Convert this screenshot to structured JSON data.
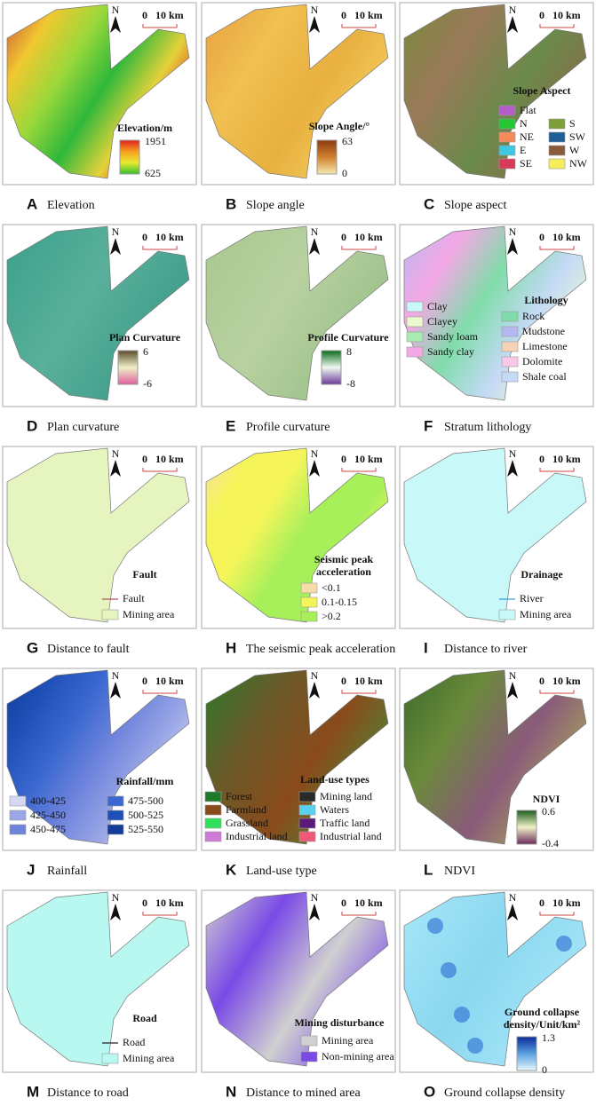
{
  "panels": [
    {
      "letter": "A",
      "caption": "Elevation",
      "north": "N",
      "scale": [
        "0",
        "10 km"
      ],
      "legend": {
        "title": [
          "Elevation/m"
        ],
        "ramp": [
          "1951",
          "625"
        ]
      }
    },
    {
      "letter": "B",
      "caption": "Slope angle",
      "north": "N",
      "scale": [
        "0",
        "10 km"
      ],
      "legend": {
        "title": [
          "Slope Angle/°"
        ],
        "ramp": [
          "63",
          "0"
        ]
      }
    },
    {
      "letter": "C",
      "caption": "Slope aspect",
      "north": "N",
      "scale": [
        "0",
        "10 km"
      ],
      "legend": {
        "title": [
          "Slope Aspect"
        ],
        "items": [
          {
            "label": "Flat",
            "color": "#b45cc8"
          },
          {
            "label": "N",
            "color": "#22c833"
          },
          {
            "label": "NE",
            "color": "#f58a5a"
          },
          {
            "label": "E",
            "color": "#3cc8e0"
          },
          {
            "label": "SE",
            "color": "#d83a5a"
          },
          {
            "label": "S",
            "color": "#7ea03a"
          },
          {
            "label": "SW",
            "color": "#1f5f96"
          },
          {
            "label": "W",
            "color": "#8a5a3c"
          },
          {
            "label": "NW",
            "color": "#f5ee5a"
          }
        ]
      }
    },
    {
      "letter": "D",
      "caption": "Plan curvature",
      "north": "N",
      "scale": [
        "0",
        "10 km"
      ],
      "legend": {
        "title": [
          "Plan Curvature"
        ],
        "ramp": [
          "6",
          "-6"
        ]
      }
    },
    {
      "letter": "E",
      "caption": "Profile curvature",
      "north": "N",
      "scale": [
        "0",
        "10 km"
      ],
      "legend": {
        "title": [
          "Profile Curvature"
        ],
        "ramp": [
          "8",
          "-8"
        ]
      }
    },
    {
      "letter": "F",
      "caption": "Stratum lithology",
      "north": "N",
      "scale": [
        "0",
        "10 km"
      ],
      "legend": {
        "title": [
          "Lithology"
        ],
        "items": [
          {
            "label": "Clay",
            "color": "#c8f8f8"
          },
          {
            "label": "Clayey",
            "color": "#eef8d0"
          },
          {
            "label": "Sandy loam",
            "color": "#a8eab0"
          },
          {
            "label": "Sandy clay",
            "color": "#f5a8e6"
          },
          {
            "label": "Rock",
            "color": "#80dcaa"
          },
          {
            "label": "Mudstone",
            "color": "#b4b8f0"
          },
          {
            "label": "Limestone",
            "color": "#f8d2b4"
          },
          {
            "label": "Dolomite",
            "color": "#f8c8e6"
          },
          {
            "label": "Shale coal",
            "color": "#c4daf5"
          }
        ]
      }
    },
    {
      "letter": "G",
      "caption": "Distance to fault",
      "north": "N",
      "scale": [
        "0",
        "10 km"
      ],
      "legend": {
        "title": [
          "Fault"
        ],
        "items": [
          {
            "label": "Fault",
            "color": "#b05060",
            "swatch": "line"
          },
          {
            "label": "Mining area",
            "color": "#e6f5c0"
          }
        ]
      }
    },
    {
      "letter": "H",
      "caption": "The seismic peak acceleration",
      "north": "N",
      "scale": [
        "0",
        "10 km"
      ],
      "legend": {
        "title": [
          "Seismic peak",
          "acceleration"
        ],
        "items": [
          {
            "label": "<0.1",
            "color": "#f8dca8"
          },
          {
            "label": "0.1-0.15",
            "color": "#f5f55a"
          },
          {
            "label": ">0.2",
            "color": "#a8f05a"
          }
        ]
      }
    },
    {
      "letter": "I",
      "caption": "Distance to river",
      "north": "N",
      "scale": [
        "0",
        "10 km"
      ],
      "legend": {
        "title": [
          "Drainage"
        ],
        "items": [
          {
            "label": "River",
            "color": "#3aa0d8",
            "swatch": "line"
          },
          {
            "label": "Mining area",
            "color": "#c8f8f8"
          }
        ]
      }
    },
    {
      "letter": "J",
      "caption": "Rainfall",
      "north": "N",
      "scale": [
        "0",
        "10 km"
      ],
      "legend": {
        "title": [
          "Rainfall/mm"
        ],
        "items": [
          {
            "label": "400-425",
            "color": "#d4d8f5"
          },
          {
            "label": "425-450",
            "color": "#9aa6e6"
          },
          {
            "label": "450-475",
            "color": "#6e84dc"
          },
          {
            "label": "475-500",
            "color": "#3a68d0"
          },
          {
            "label": "500-525",
            "color": "#1f50b8"
          },
          {
            "label": "525-550",
            "color": "#123c96"
          }
        ]
      }
    },
    {
      "letter": "K",
      "caption": "Land-use type",
      "north": "N",
      "scale": [
        "0",
        "10 km"
      ],
      "legend": {
        "title": [
          "Land-use types"
        ],
        "items": [
          {
            "label": "Forest",
            "color": "#1e7a28"
          },
          {
            "label": "Farmland",
            "color": "#8a4a1a"
          },
          {
            "label": "Grassland",
            "color": "#2ee05a"
          },
          {
            "label": "Industrial land",
            "color": "#d07ad8"
          },
          {
            "label": "Mining land",
            "color": "#2a2a2a"
          },
          {
            "label": "Waters",
            "color": "#5ad0f0"
          },
          {
            "label": "Traffic land",
            "color": "#5a1a7a"
          },
          {
            "label": "Industrial land",
            "color": "#f05a78"
          }
        ]
      }
    },
    {
      "letter": "L",
      "caption": "NDVI",
      "north": "N",
      "scale": [
        "0",
        "10 km"
      ],
      "legend": {
        "title": [
          "NDVI"
        ],
        "ramp": [
          "0.6",
          "-0.4"
        ]
      }
    },
    {
      "letter": "M",
      "caption": "Distance to road",
      "north": "N",
      "scale": [
        "0",
        "10 km"
      ],
      "legend": {
        "title": [
          "Road"
        ],
        "items": [
          {
            "label": "Road",
            "color": "#222222",
            "swatch": "line"
          },
          {
            "label": "Mining area",
            "color": "#b8f8f0"
          }
        ]
      }
    },
    {
      "letter": "N",
      "caption": "Distance to mined area",
      "north": "N",
      "scale": [
        "0",
        "10 km"
      ],
      "legend": {
        "title": [
          "Mining disturbance"
        ],
        "items": [
          {
            "label": "Mining area",
            "color": "#d0d0d0"
          },
          {
            "label": "Non-mining area",
            "color": "#7a4ae6"
          }
        ]
      }
    },
    {
      "letter": "O",
      "caption": "Ground collapse density",
      "north": "N",
      "scale": [
        "0",
        "10 km"
      ],
      "legend": {
        "title": [
          "Ground collapse",
          "density/Unit/km²"
        ],
        "ramp": [
          "1.3",
          "0"
        ]
      }
    }
  ]
}
